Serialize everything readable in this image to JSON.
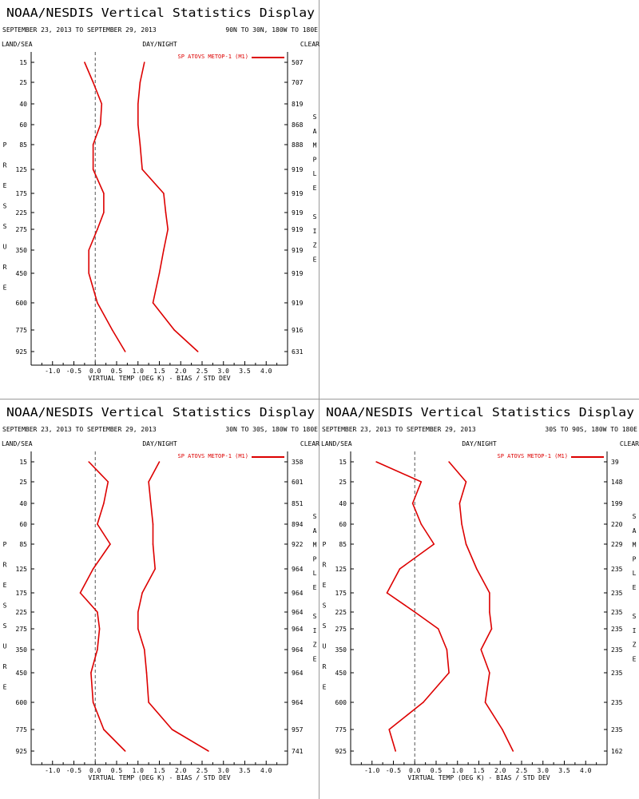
{
  "chart_data": [
    {
      "type": "line",
      "title": "NOAA/NESDIS Vertical Statistics Display",
      "date_range": "SEPTEMBER 23, 2013 TO SEPTEMBER 29, 2013",
      "region": "90N TO 30N, 180W TO 180E",
      "land_sea": "LAND/SEA",
      "day_night": "DAY/NIGHT",
      "sky": "CLEAR",
      "ylabel": "PRESSURE",
      "y2label": "SAMPLE SIZE",
      "xlabel": "VIRTUAL TEMP (DEG K) - BIAS / STD DEV",
      "xlim": [
        -1.5,
        4.5
      ],
      "xticks": [
        "-1.0",
        "-0.5",
        "0.0",
        "0.5",
        "1.0",
        "1.5",
        "2.0",
        "2.5",
        "3.0",
        "3.5",
        "4.0"
      ],
      "pressure_levels": [
        "15",
        "25",
        "40",
        "60",
        "85",
        "125",
        "175",
        "225",
        "275",
        "350",
        "450",
        "600",
        "775",
        "925"
      ],
      "sample_sizes": [
        "507",
        "707",
        "819",
        "868",
        "888",
        "919",
        "919",
        "919",
        "919",
        "919",
        "919",
        "919",
        "916",
        "631"
      ],
      "legend": "SP ATOVS METOP-1 (M1)",
      "series": [
        {
          "name": "bias",
          "values": [
            -0.25,
            -0.05,
            0.15,
            0.12,
            -0.05,
            -0.05,
            0.2,
            0.2,
            0.05,
            -0.15,
            -0.15,
            0.05,
            0.4,
            0.7
          ]
        },
        {
          "name": "std dev",
          "values": [
            1.15,
            1.05,
            1.0,
            1.0,
            1.05,
            1.1,
            1.6,
            1.65,
            1.7,
            1.6,
            1.5,
            1.35,
            1.85,
            2.4
          ]
        }
      ]
    },
    {
      "type": "line",
      "title": "NOAA/NESDIS Vertical Statistics Display",
      "date_range": "SEPTEMBER 23, 2013 TO SEPTEMBER 29, 2013",
      "region": "30N TO 30S, 180W TO 180E",
      "land_sea": "LAND/SEA",
      "day_night": "DAY/NIGHT",
      "sky": "CLEAR",
      "ylabel": "PRESSURE",
      "y2label": "SAMPLE SIZE",
      "xlabel": "VIRTUAL TEMP (DEG K) - BIAS / STD DEV",
      "xlim": [
        -1.5,
        4.5
      ],
      "xticks": [
        "-1.0",
        "-0.5",
        "0.0",
        "0.5",
        "1.0",
        "1.5",
        "2.0",
        "2.5",
        "3.0",
        "3.5",
        "4.0"
      ],
      "pressure_levels": [
        "15",
        "25",
        "40",
        "60",
        "85",
        "125",
        "175",
        "225",
        "275",
        "350",
        "450",
        "600",
        "775",
        "925"
      ],
      "sample_sizes": [
        "358",
        "601",
        "851",
        "894",
        "922",
        "964",
        "964",
        "964",
        "964",
        "964",
        "964",
        "964",
        "957",
        "741"
      ],
      "legend": "SP ATOVS METOP-1 (M1)",
      "series": [
        {
          "name": "bias",
          "values": [
            -0.15,
            0.3,
            0.2,
            0.05,
            0.35,
            -0.05,
            -0.35,
            0.05,
            0.1,
            0.05,
            -0.1,
            -0.05,
            0.2,
            0.7
          ]
        },
        {
          "name": "std dev",
          "values": [
            1.5,
            1.25,
            1.3,
            1.35,
            1.35,
            1.4,
            1.1,
            1.0,
            1.0,
            1.15,
            1.2,
            1.25,
            1.8,
            2.65
          ]
        }
      ]
    },
    {
      "type": "line",
      "title": "NOAA/NESDIS Vertical Statistics Display",
      "date_range": "SEPTEMBER 23, 2013 TO SEPTEMBER 29, 2013",
      "region": "30S TO 90S, 180W TO 180E",
      "land_sea": "LAND/SEA",
      "day_night": "DAY/NIGHT",
      "sky": "CLEAR",
      "ylabel": "PRESSURE",
      "y2label": "SAMPLE SIZE",
      "xlabel": "VIRTUAL TEMP (DEG K) - BIAS / STD DEV",
      "xlim": [
        -1.5,
        4.5
      ],
      "xticks": [
        "-1.0",
        "-0.5",
        "0.0",
        "0.5",
        "1.0",
        "1.5",
        "2.0",
        "2.5",
        "3.0",
        "3.5",
        "4.0"
      ],
      "pressure_levels": [
        "15",
        "25",
        "40",
        "60",
        "85",
        "125",
        "175",
        "225",
        "275",
        "350",
        "450",
        "600",
        "775",
        "925"
      ],
      "sample_sizes": [
        "39",
        "148",
        "199",
        "220",
        "229",
        "235",
        "235",
        "235",
        "235",
        "235",
        "235",
        "235",
        "235",
        "162"
      ],
      "legend": "SP ATOVS METOP-1 (M1)",
      "series": [
        {
          "name": "bias",
          "values": [
            -0.9,
            0.15,
            -0.05,
            0.15,
            0.45,
            -0.35,
            -0.65,
            0.0,
            0.55,
            0.75,
            0.8,
            0.2,
            -0.6,
            -0.45
          ]
        },
        {
          "name": "std dev",
          "values": [
            0.8,
            1.2,
            1.05,
            1.1,
            1.2,
            1.45,
            1.75,
            1.75,
            1.8,
            1.55,
            1.75,
            1.65,
            2.05,
            2.3
          ]
        }
      ]
    }
  ]
}
